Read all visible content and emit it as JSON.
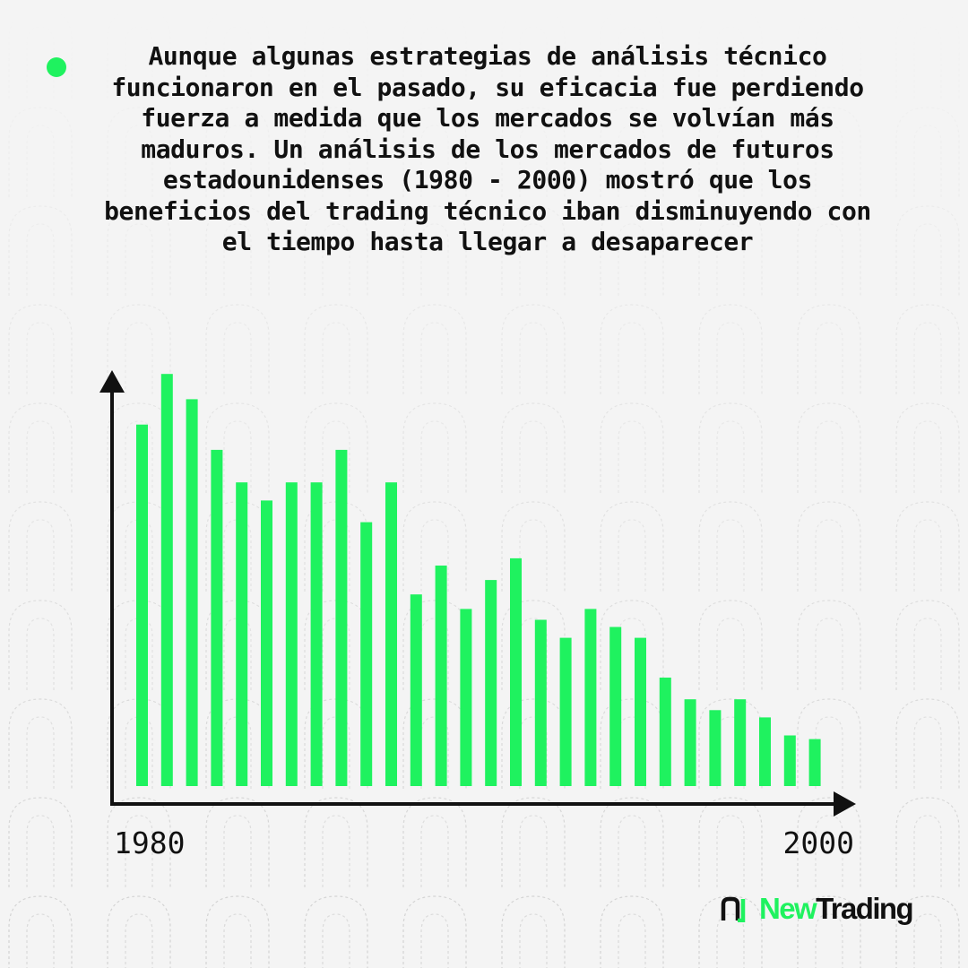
{
  "caption": "Aunque algunas estrategias de análisis técnico funcionaron en el pasado, su eficacia fue perdiendo fuerza a medida que los mercados se volvían más maduros. Un análisis de los mercados de futuros estadounidenses (1980 - 2000) mostró que los beneficios del trading técnico iban disminuyendo con el tiempo hasta llegar a desaparecer",
  "colors": {
    "accent": "#1ff25f",
    "text": "#111111",
    "background": "#f4f4f4"
  },
  "chart_data": {
    "type": "bar",
    "x_tick_labels": [
      "1980",
      "2000"
    ],
    "values": [
      100,
      114,
      107,
      93,
      84,
      79,
      84,
      84,
      93,
      73,
      84,
      53,
      61,
      49,
      57,
      63,
      46,
      41,
      49,
      44,
      41,
      30,
      24,
      21,
      24,
      19,
      14,
      13
    ],
    "ylim": [
      0,
      120
    ],
    "grid": false,
    "legend": "none",
    "y_tick_labels": false
  },
  "logo": {
    "word1": "New",
    "word2": "Trading"
  }
}
